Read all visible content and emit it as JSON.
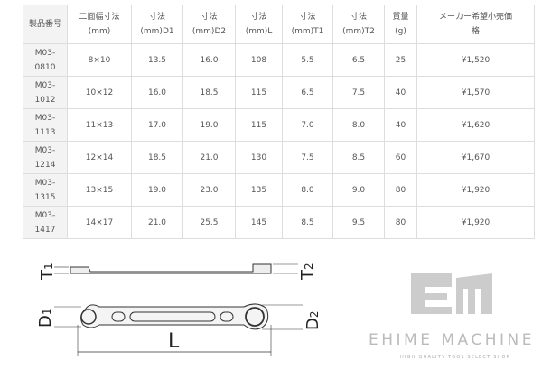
{
  "table": {
    "headers": [
      [
        "製品番号",
        ""
      ],
      [
        "二面幅寸法",
        "(mm)"
      ],
      [
        "寸法",
        "(mm)D1"
      ],
      [
        "寸法",
        "(mm)D2"
      ],
      [
        "寸法",
        "(mm)L"
      ],
      [
        "寸法",
        "(mm)T1"
      ],
      [
        "寸法",
        "(mm)T2"
      ],
      [
        "質量",
        "(g)"
      ],
      [
        "メーカー希望小売価",
        "格"
      ]
    ],
    "rows": [
      [
        [
          "M03-",
          "0810"
        ],
        "8×10",
        "13.5",
        "16.0",
        "108",
        "5.5",
        "6.5",
        "25",
        "¥1,520"
      ],
      [
        [
          "M03-",
          "1012"
        ],
        "10×12",
        "16.0",
        "18.5",
        "115",
        "6.5",
        "7.5",
        "40",
        "¥1,570"
      ],
      [
        [
          "M03-",
          "1113"
        ],
        "11×13",
        "17.0",
        "19.0",
        "115",
        "7.0",
        "8.0",
        "40",
        "¥1,620"
      ],
      [
        [
          "M03-",
          "1214"
        ],
        "12×14",
        "18.5",
        "21.0",
        "130",
        "7.5",
        "8.5",
        "60",
        "¥1,670"
      ],
      [
        [
          "M03-",
          "1315"
        ],
        "13×15",
        "19.0",
        "23.0",
        "135",
        "8.0",
        "9.0",
        "80",
        "¥1,920"
      ],
      [
        [
          "M03-",
          "1417"
        ],
        "14×17",
        "21.0",
        "25.5",
        "145",
        "8.5",
        "9.5",
        "80",
        "¥1,920"
      ]
    ]
  },
  "diagram": {
    "t1": "T1",
    "t2": "T2",
    "d1": "D1",
    "d2": "D2",
    "l": "L"
  },
  "logo": {
    "mark": "EM",
    "name": "EHIME MACHINE",
    "tagline": "HIGH QUALITY TOOL SELECT SHOP"
  }
}
